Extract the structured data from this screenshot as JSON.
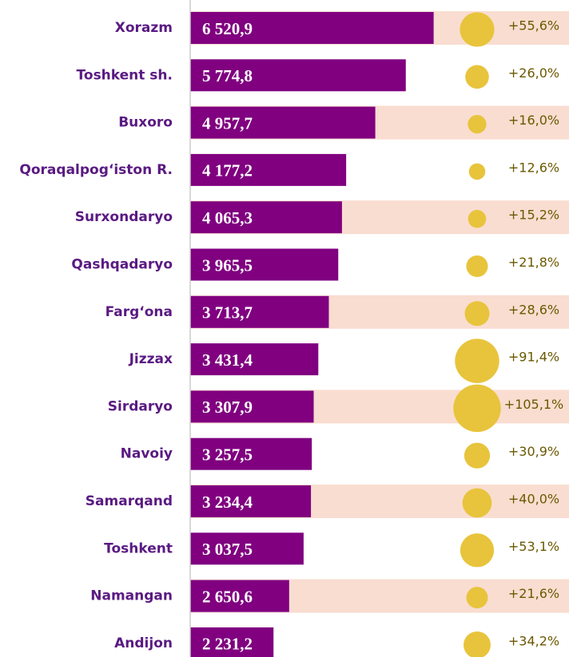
{
  "chart_data": {
    "type": "bar",
    "orientation": "horizontal",
    "categories": [
      "Xorazm",
      "Toshkent sh.",
      "Buxoro",
      "Qoraqalpog‘iston R.",
      "Surxondaryo",
      "Qashqadaryo",
      "Farg‘ona",
      "Jizzax",
      "Sirdaryo",
      "Navoiy",
      "Samarqand",
      "Toshkent",
      "Namangan",
      "Andijon"
    ],
    "values": [
      6520.9,
      5774.8,
      4957.7,
      4177.2,
      4065.3,
      3965.5,
      3713.7,
      3431.4,
      3307.9,
      3257.5,
      3234.4,
      3037.5,
      2650.6,
      2231.2
    ],
    "value_labels": [
      "6 520,9",
      "5 774,8",
      "4 957,7",
      "4 177,2",
      "4 065,3",
      "3 965,5",
      "3 713,7",
      "3 431,4",
      "3 307,9",
      "3 257,5",
      "3 234,4",
      "3 037,5",
      "2 650,6",
      "2 231,2"
    ],
    "color": "#800080",
    "xlim": [
      0,
      6700
    ],
    "growth": {
      "type": "bubble",
      "color": "#e8c43c",
      "values": [
        55.6,
        26.0,
        16.0,
        12.6,
        15.2,
        21.8,
        28.6,
        91.4,
        105.1,
        30.9,
        40.0,
        53.1,
        21.6,
        34.2
      ],
      "value_labels": [
        "+55,6%",
        "+26,0%",
        "+16,0%",
        "+12,6%",
        "+15,2%",
        "+21,8%",
        "+28,6%",
        "+91,4%",
        "+105,1%",
        "+30,9%",
        "+40,0%",
        "+53,1%",
        "+21,6%",
        "+34,2%"
      ]
    }
  }
}
